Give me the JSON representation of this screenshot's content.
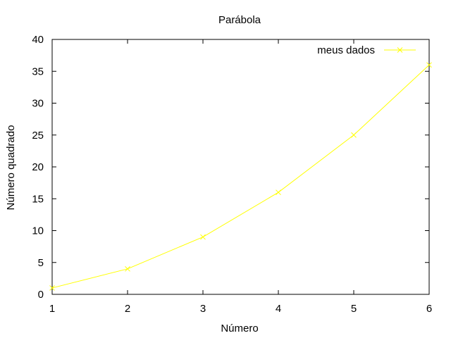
{
  "chart_data": {
    "type": "line",
    "title": "Parábola",
    "xlabel": "Número",
    "ylabel": "Número quadrado",
    "x": [
      1,
      2,
      3,
      4,
      5,
      6
    ],
    "series": [
      {
        "name": "meus dados",
        "values": [
          1,
          4,
          9,
          16,
          25,
          36
        ],
        "color": "#ffff00",
        "marker": "x"
      }
    ],
    "xlim": [
      1,
      6
    ],
    "ylim": [
      0,
      40
    ],
    "xticks": [
      1,
      2,
      3,
      4,
      5,
      6
    ],
    "yticks": [
      0,
      5,
      10,
      15,
      20,
      25,
      30,
      35,
      40
    ],
    "grid": false,
    "legend_position": "top-right"
  }
}
